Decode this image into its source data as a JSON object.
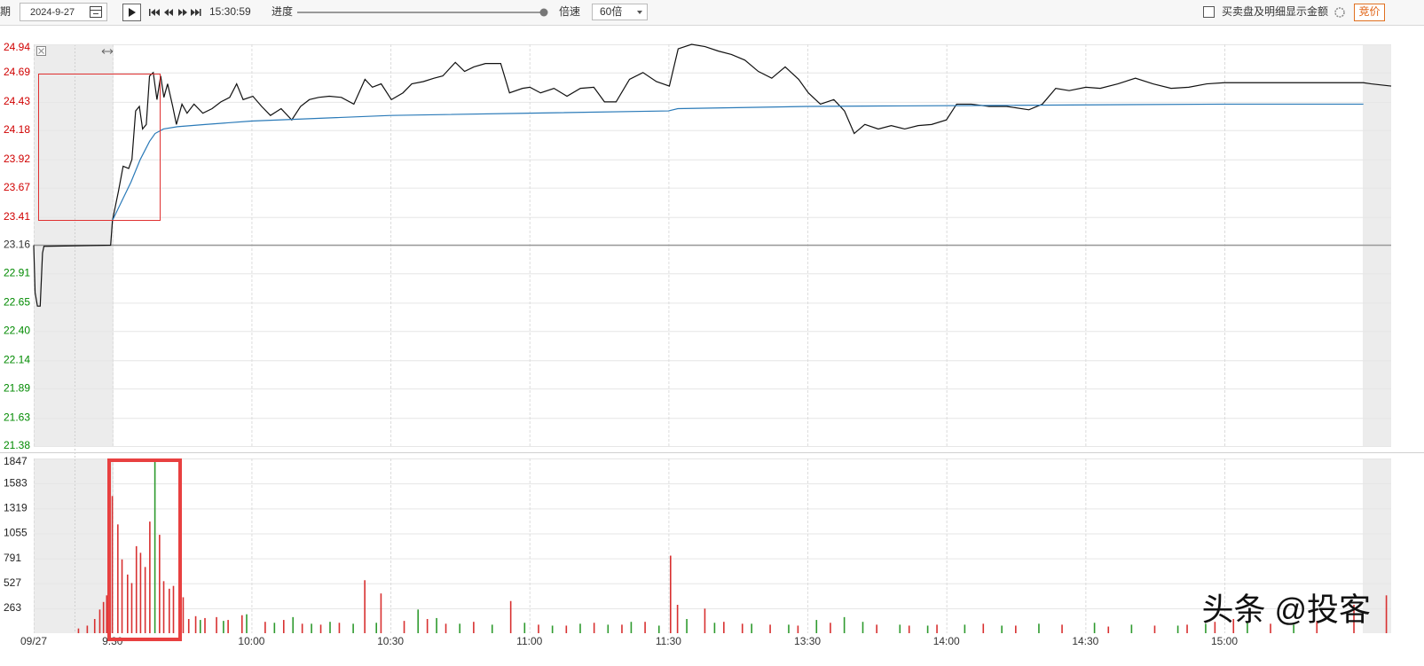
{
  "toolbar": {
    "period_label": "期",
    "date": "2024-9-27",
    "time": "15:30:59",
    "progress_label": "进度",
    "speed_label": "倍速",
    "speed": "60倍",
    "checkbox_label": "买卖盘及明细显示金额",
    "auction_button": "竞价"
  },
  "watermark": "头条 @投客",
  "chart_data": [
    {
      "type": "line",
      "xlim": [
        -17,
        276
      ],
      "xticks": [
        -17,
        0,
        30,
        60,
        90,
        120,
        150,
        180,
        210,
        240
      ],
      "ylim": [
        21.38,
        24.94
      ],
      "yticks": [
        24.94,
        24.69,
        24.43,
        24.18,
        23.92,
        23.67,
        23.41,
        23.16,
        22.91,
        22.65,
        {
          "value": 22.4,
          "label": "22.40"
        },
        22.14,
        21.89,
        21.63,
        21.38
      ],
      "reference_line": 23.16,
      "up_color": "#d00000",
      "down_color": "#008a00",
      "grid": true,
      "series": [
        {
          "color": "#111111",
          "x": [
            -17,
            -16.7,
            -16.2,
            -15.6,
            -15.1,
            -14.8,
            -0.4,
            0,
            1.3,
            2.3,
            3.5,
            4.2,
            5,
            5.8,
            6.5,
            7.3,
            8,
            8.8,
            9.6,
            10.4,
            11.1,
            11.9,
            13,
            13.8,
            15,
            16.1,
            17.6,
            19.5,
            21.5,
            23.4,
            25.3,
            26.8,
            28.2,
            30.3,
            32.2,
            34.1,
            36.4,
            38.7,
            40.6,
            42.5,
            44.5,
            46.8,
            49.4,
            52.1,
            54.5,
            56.1,
            58,
            60.2,
            62.7,
            64.6,
            67.1,
            69.4,
            71.3,
            74,
            76,
            78,
            80.5,
            83.8,
            85.7,
            88.5,
            90.1,
            92.4,
            95.3,
            98.1,
            101,
            103.9,
            106.2,
            108.7,
            111.6,
            114.5,
            117.4,
            120.2,
            122.1,
            125,
            127.9,
            130.8,
            133.6,
            136.5,
            139.4,
            142.3,
            145.2,
            148.1,
            150.2,
            152.8,
            155.7,
            158,
            160.1,
            162.4,
            165.3,
            168.1,
            171,
            173.9,
            176.8,
            180,
            182.2,
            185.4,
            189.2,
            193,
            197.8,
            200.7,
            203.6,
            206.5,
            210.1,
            213.2,
            217,
            220.8,
            224.6,
            228.5,
            232.3,
            236.2,
            240,
            270,
            271.7,
            276
          ],
          "values": [
            23.16,
            22.74,
            22.62,
            22.62,
            23.09,
            23.15,
            23.16,
            23.38,
            23.64,
            23.86,
            23.84,
            23.92,
            24.35,
            24.39,
            24.19,
            24.23,
            24.66,
            24.69,
            24.45,
            24.66,
            24.47,
            24.59,
            24.39,
            24.23,
            24.41,
            24.33,
            24.41,
            24.33,
            24.37,
            24.43,
            24.47,
            24.59,
            24.45,
            24.48,
            24.39,
            24.31,
            24.37,
            24.27,
            24.39,
            24.45,
            24.47,
            24.48,
            24.47,
            24.41,
            24.63,
            24.56,
            24.59,
            24.45,
            24.51,
            24.59,
            24.61,
            24.64,
            24.66,
            24.78,
            24.7,
            24.74,
            24.77,
            24.77,
            24.51,
            24.55,
            24.56,
            24.51,
            24.55,
            24.48,
            24.55,
            24.56,
            24.43,
            24.43,
            24.63,
            24.69,
            24.61,
            24.57,
            24.9,
            24.94,
            24.92,
            24.88,
            24.85,
            24.8,
            24.7,
            24.64,
            24.74,
            24.63,
            24.51,
            24.41,
            24.45,
            24.35,
            24.15,
            24.23,
            24.19,
            24.22,
            24.19,
            24.22,
            24.23,
            24.27,
            24.41,
            24.41,
            24.39,
            24.39,
            24.36,
            24.41,
            24.55,
            24.53,
            24.56,
            24.55,
            24.59,
            24.64,
            24.59,
            24.55,
            24.56,
            24.59,
            24.6,
            24.6,
            24.59,
            24.57
          ]
        },
        {
          "color": "#2a7ab8",
          "x": [
            0,
            2,
            4,
            6,
            8,
            9.2,
            11,
            14,
            20,
            30,
            60,
            90,
            120,
            122,
            150,
            240,
            270
          ],
          "values": [
            23.38,
            23.55,
            23.72,
            23.92,
            24.08,
            24.15,
            24.19,
            24.21,
            24.23,
            24.26,
            24.31,
            24.33,
            24.35,
            24.37,
            24.39,
            24.41,
            24.41
          ]
        }
      ]
    },
    {
      "type": "bar",
      "xlim": [
        -17,
        276
      ],
      "xticks": [
        {
          "value": -17,
          "label": "09/27"
        },
        {
          "value": 0,
          "label": "9:30"
        },
        {
          "value": 30,
          "label": "10:00"
        },
        {
          "value": 60,
          "label": "10:30"
        },
        {
          "value": 90,
          "label": "11:00"
        },
        {
          "value": 120,
          "label": "11:30"
        },
        {
          "value": 150,
          "label": "13:30"
        },
        {
          "value": 180,
          "label": "14:00"
        },
        {
          "value": 210,
          "label": "14:30"
        },
        {
          "value": 240,
          "label": "15:00"
        }
      ],
      "ylim": [
        0,
        1847
      ],
      "yticks": [
        1847,
        1583,
        1319,
        1055,
        791,
        527,
        263
      ],
      "tick_color": "#222222",
      "grid": true,
      "series": [
        {
          "color": "#d83030",
          "x": [
            -7.3,
            -5.4,
            -3.8,
            -2.7,
            -1.9,
            -1.2,
            0,
            1.2,
            2.1,
            3.3,
            4.2,
            5.2,
            6.1,
            7.1,
            8.1,
            10.2,
            11.1,
            12.3,
            13.2,
            15.3,
            16.5,
            18,
            20,
            22.5,
            25,
            28,
            33,
            37,
            41,
            45,
            49,
            54.5,
            58,
            63,
            68,
            72,
            78,
            86,
            92,
            98,
            104,
            110,
            115,
            120.5,
            122,
            127.9,
            132,
            136,
            142,
            148,
            155,
            165,
            172,
            178,
            188,
            195,
            205,
            215,
            225,
            232,
            238,
            242,
            250,
            260,
            268,
            275
          ],
          "values": [
            50,
            80,
            150,
            250,
            330,
            400,
            1450,
            1150,
            780,
            620,
            530,
            920,
            850,
            700,
            1180,
            1040,
            550,
            470,
            500,
            380,
            150,
            180,
            160,
            170,
            140,
            190,
            120,
            140,
            100,
            90,
            110,
            560,
            420,
            130,
            150,
            100,
            120,
            340,
            90,
            80,
            110,
            90,
            120,
            820,
            300,
            260,
            120,
            100,
            90,
            80,
            110,
            90,
            80,
            90,
            100,
            80,
            90,
            70,
            80,
            90,
            120,
            150,
            100,
            130,
            300,
            400
          ]
        },
        {
          "color": "#2e9a2e",
          "x": [
            9.2,
            19,
            24,
            29,
            35,
            39,
            43,
            47,
            52,
            57,
            66,
            70,
            75,
            82,
            89,
            95,
            101,
            107,
            112,
            118,
            124,
            130,
            138,
            146,
            152,
            158,
            162,
            170,
            176,
            184,
            192,
            200,
            212,
            220,
            230,
            236,
            245,
            255
          ],
          "values": [
            1847,
            140,
            130,
            200,
            110,
            170,
            100,
            120,
            100,
            110,
            250,
            160,
            100,
            90,
            110,
            80,
            100,
            90,
            120,
            80,
            150,
            110,
            100,
            90,
            140,
            170,
            120,
            90,
            80,
            90,
            80,
            100,
            110,
            90,
            80,
            100,
            110,
            90
          ]
        }
      ]
    }
  ]
}
